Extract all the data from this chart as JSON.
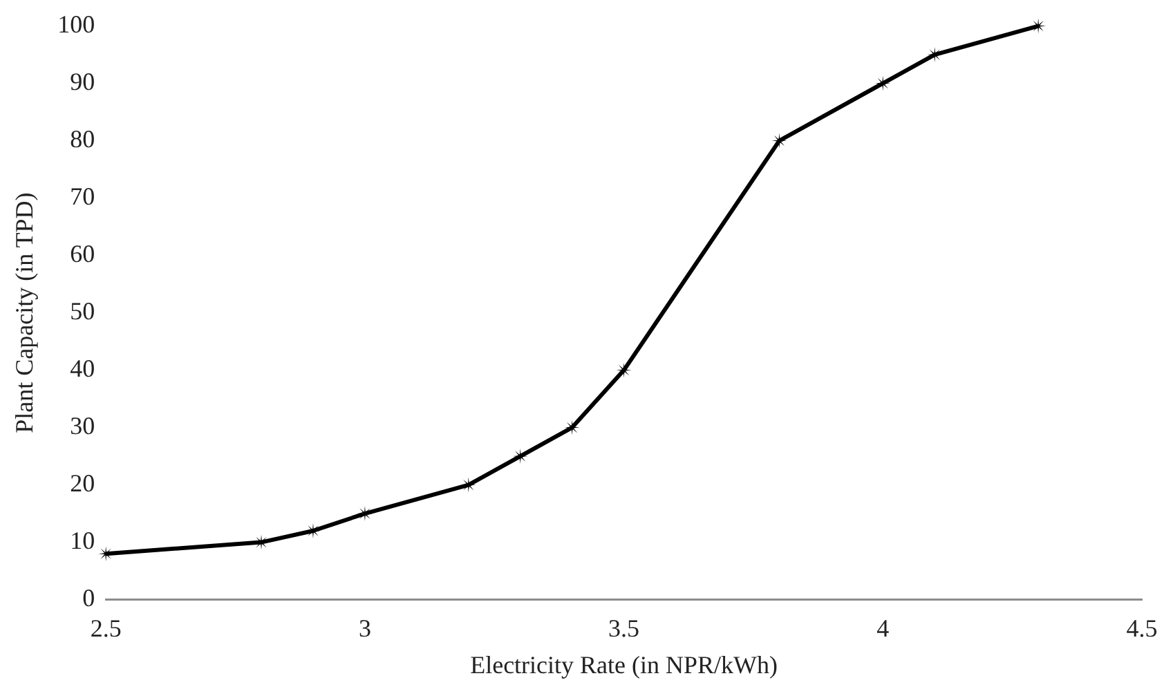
{
  "chart_data": {
    "type": "line",
    "xlabel": "Electricity Rate (in NPR/kWh)",
    "ylabel": "Plant Capacity (in TPD)",
    "x": [
      2.5,
      2.8,
      2.9,
      3,
      3.2,
      3.3,
      3.4,
      3.5,
      3.8,
      4,
      4.1,
      4.3
    ],
    "series": [
      {
        "color": "#000000",
        "values": [
          8,
          10,
          12,
          15,
          20,
          25,
          30,
          40,
          80,
          90,
          95,
          100
        ]
      }
    ],
    "xlim": [
      2.5,
      4.5
    ],
    "xticks": [
      2.5,
      3,
      3.5,
      4,
      4.5
    ],
    "ylim": [
      0,
      100
    ],
    "yticks": [
      0,
      10,
      20,
      30,
      40,
      50,
      60,
      70,
      80,
      90,
      100
    ],
    "grid": false,
    "legend": false,
    "marker": "star",
    "line_style": "solid"
  }
}
